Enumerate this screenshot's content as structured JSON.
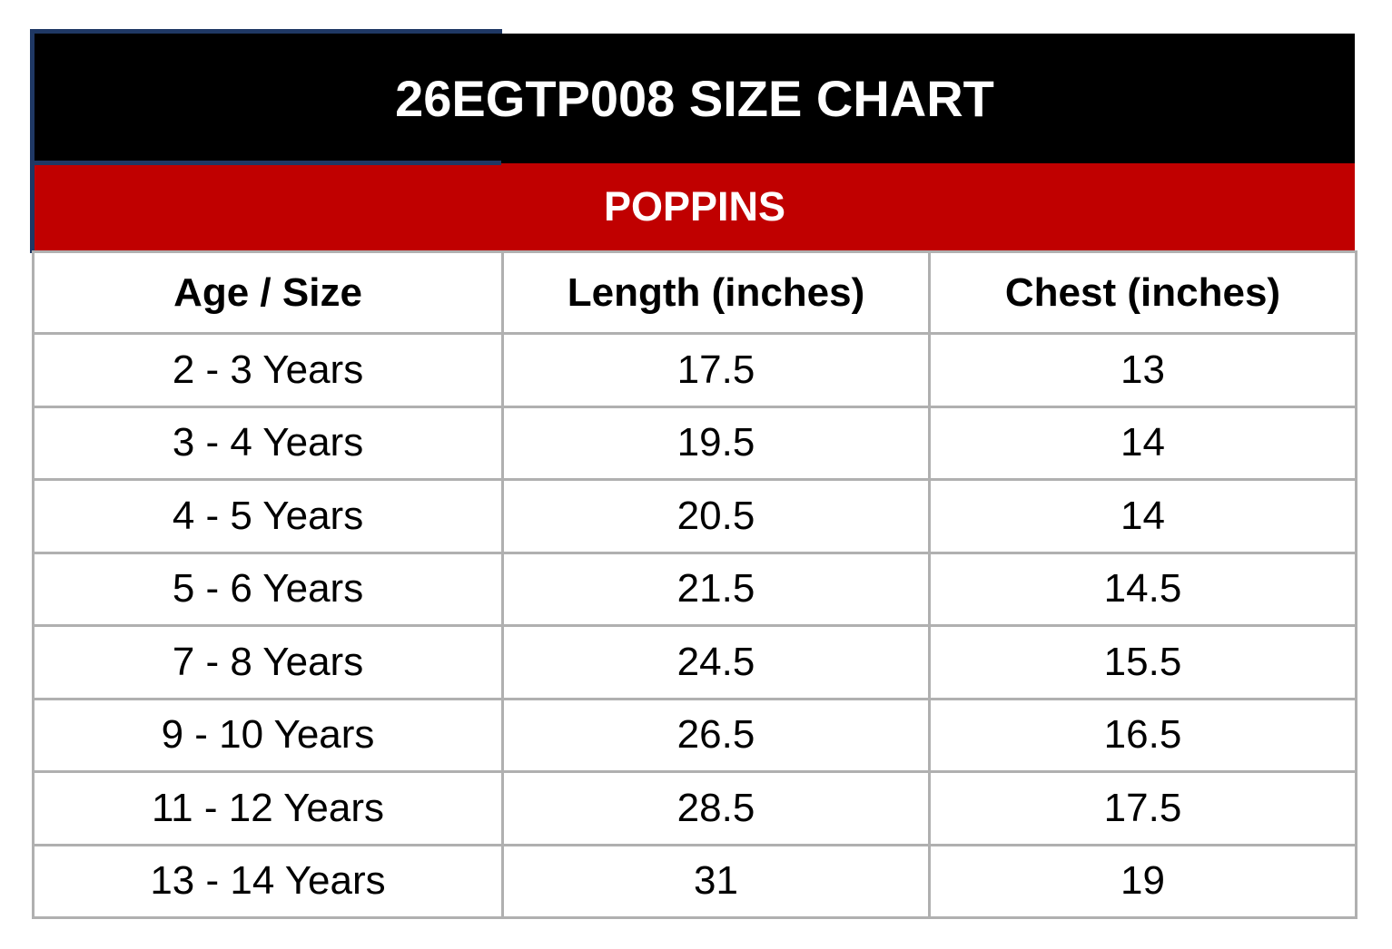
{
  "header": {
    "title": "26EGTP008 SIZE CHART",
    "subtitle": "POPPINS"
  },
  "table": {
    "columns": [
      "Age / Size",
      "Length (inches)",
      "Chest (inches)"
    ],
    "rows": [
      [
        "2 - 3 Years",
        "17.5",
        "13"
      ],
      [
        "3 - 4 Years",
        "19.5",
        "14"
      ],
      [
        "4 - 5 Years",
        "20.5",
        "14"
      ],
      [
        "5 - 6 Years",
        "21.5",
        "14.5"
      ],
      [
        "7 - 8 Years",
        "24.5",
        "15.5"
      ],
      [
        "9 - 10 Years",
        "26.5",
        "16.5"
      ],
      [
        "11 - 12 Years",
        "28.5",
        "17.5"
      ],
      [
        "13 - 14 Years",
        "31",
        "19"
      ]
    ]
  }
}
